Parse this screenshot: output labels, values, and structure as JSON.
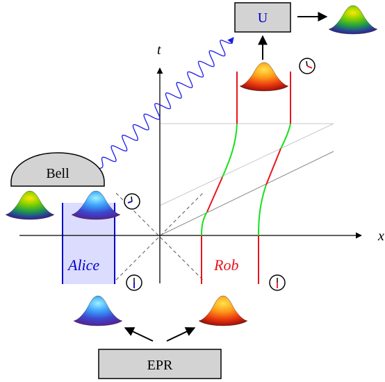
{
  "axes": {
    "time_label": "t",
    "space_label": "x"
  },
  "boxes": {
    "unitary": "U",
    "bell": "Bell",
    "source": "EPR"
  },
  "parties": {
    "alice": {
      "label": "Alice",
      "color": "#0000cc"
    },
    "rob": {
      "label": "Rob",
      "color": "#e8141e"
    }
  },
  "colors": {
    "wave": "#1a1aee",
    "rob_inertial": "#e8141e",
    "rob_accelerating": "#14e01a",
    "alice_region_fill": "#dcdcff",
    "box_fill": "#d3d3d3"
  },
  "icons": {
    "state_blobs": [
      "rainbow-state-icon",
      "blue-state-icon",
      "orange-state-icon"
    ],
    "clock": "clock-icon"
  }
}
